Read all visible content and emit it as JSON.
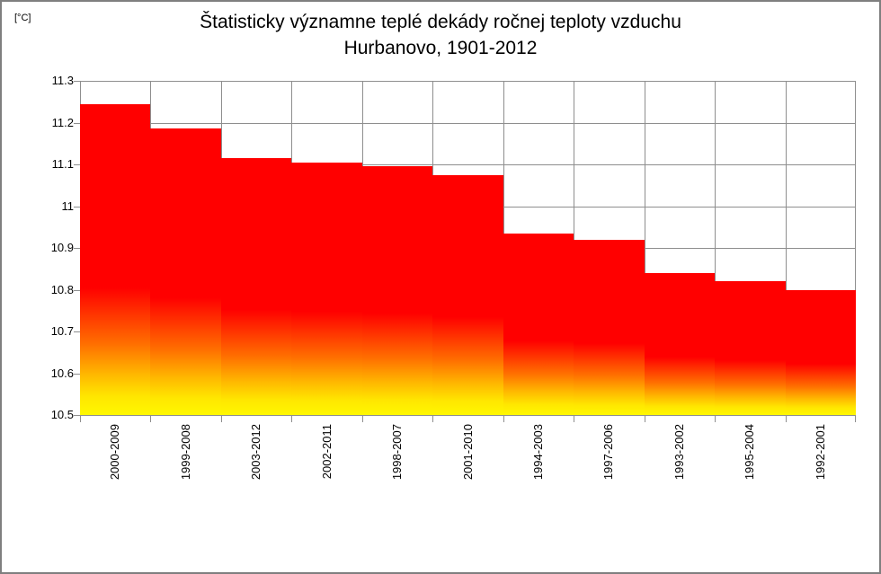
{
  "frame": {
    "unit_label": "[°C]"
  },
  "title": {
    "line1": "Štatisticky významne teplé dekády ročnej teploty vzduchu",
    "line2": "Hurbanovo, 1901-2012"
  },
  "chart_data": {
    "type": "bar",
    "title": "Štatisticky významne teplé dekády ročnej teploty vzduchu — Hurbanovo, 1901-2012",
    "categories": [
      "2000-2009",
      "1999-2008",
      "2003-2012",
      "2002-2011",
      "1998-2007",
      "2001-2010",
      "1994-2003",
      "1997-2006",
      "1993-2002",
      "1995-2004",
      "1992-2001"
    ],
    "values": [
      11.245,
      11.185,
      11.115,
      11.105,
      11.095,
      11.075,
      10.935,
      10.92,
      10.84,
      10.82,
      10.8
    ],
    "xlabel": "",
    "ylabel": "[°C]",
    "ylim": [
      10.5,
      11.3
    ],
    "ytick_step": 0.1,
    "ytick_labels": [
      "11.3",
      "11.2",
      "11.1",
      "11",
      "10.9",
      "10.8",
      "10.7",
      "10.6",
      "10.5"
    ],
    "grid": true,
    "legend": false,
    "bar_gap": 0,
    "bar_gradient_stops": [
      {
        "color": "#FF0000",
        "pos": 0
      },
      {
        "color": "#FF0000",
        "pos": 59
      },
      {
        "color": "#FF6E00",
        "pos": 77
      },
      {
        "color": "#FFB800",
        "pos": 87
      },
      {
        "color": "#FFE600",
        "pos": 94
      },
      {
        "color": "#FFF800",
        "pos": 100
      }
    ]
  },
  "colors": {
    "background": "#FFFFFF",
    "border": "#7F7F7F",
    "gridline": "#8E8E8E",
    "axis": "#8E8E8E",
    "text": "#000000"
  }
}
